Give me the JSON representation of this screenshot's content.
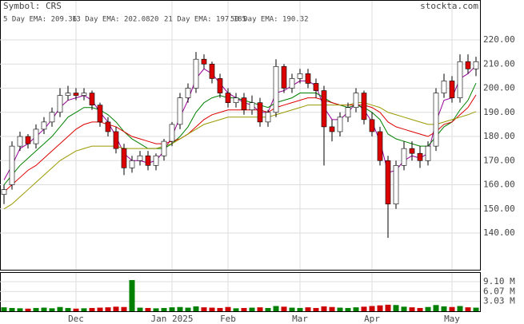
{
  "chart_data": {
    "type": "candlestick",
    "symbol_label": "Symbol: CRS",
    "site": "stockta.com",
    "categories": [
      null,
      null,
      null,
      null,
      null,
      null,
      null,
      null,
      null,
      "Dec",
      null,
      null,
      null,
      null,
      null,
      null,
      null,
      null,
      null,
      null,
      null,
      "Jan 2025",
      null,
      null,
      null,
      null,
      null,
      null,
      "Feb",
      null,
      null,
      null,
      null,
      null,
      null,
      null,
      null,
      "Mar",
      null,
      null,
      null,
      null,
      null,
      null,
      null,
      null,
      "Apr",
      null,
      null,
      null,
      null,
      null,
      null,
      null,
      null,
      null,
      "May",
      null,
      null,
      null
    ],
    "open": [
      156,
      160,
      176,
      180,
      177,
      183,
      186,
      190,
      197,
      198,
      197,
      198,
      193,
      186,
      182,
      175,
      167,
      170,
      172,
      168,
      172,
      178,
      185,
      196,
      200,
      212,
      210,
      204,
      198,
      194,
      196,
      191,
      194,
      186,
      190,
      209,
      200,
      204,
      206,
      202,
      199,
      184,
      182,
      188,
      192,
      198,
      187,
      182,
      170,
      152,
      168,
      175,
      173,
      170,
      176,
      198,
      203,
      196,
      211,
      208
    ],
    "high": [
      160,
      178,
      182,
      181,
      185,
      188,
      192,
      200,
      201,
      200,
      200,
      199,
      194,
      188,
      184,
      177,
      172,
      174,
      174,
      173,
      179,
      186,
      198,
      202,
      215,
      214,
      211,
      206,
      200,
      198,
      198,
      197,
      196,
      191,
      212,
      210,
      206,
      208,
      208,
      204,
      201,
      187,
      190,
      194,
      200,
      199,
      190,
      184,
      172,
      170,
      178,
      178,
      176,
      178,
      200,
      206,
      205,
      214,
      214,
      213
    ],
    "low": [
      152,
      158,
      174,
      175,
      175,
      181,
      184,
      188,
      195,
      195,
      195,
      191,
      184,
      180,
      173,
      164,
      165,
      168,
      166,
      166,
      170,
      176,
      183,
      194,
      198,
      208,
      202,
      196,
      192,
      192,
      189,
      189,
      184,
      184,
      188,
      198,
      198,
      202,
      200,
      196,
      168,
      178,
      180,
      186,
      190,
      185,
      180,
      168,
      138,
      150,
      166,
      170,
      167,
      168,
      174,
      196,
      194,
      194,
      206,
      205
    ],
    "close": [
      158,
      176,
      180,
      177,
      183,
      186,
      190,
      197,
      198,
      197,
      198,
      193,
      186,
      182,
      175,
      167,
      170,
      172,
      168,
      172,
      178,
      185,
      196,
      200,
      212,
      210,
      204,
      198,
      194,
      196,
      191,
      194,
      186,
      190,
      209,
      200,
      204,
      206,
      202,
      199,
      184,
      182,
      188,
      192,
      198,
      187,
      182,
      170,
      152,
      168,
      175,
      173,
      170,
      176,
      198,
      203,
      196,
      211,
      208,
      211
    ],
    "up_color": "#ffffff",
    "down_color": "#dd0000",
    "series": [
      {
        "name": "5 Day EMA: 209.36",
        "color": "#990099",
        "values": [
          162,
          168,
          175,
          177,
          180,
          183,
          187,
          192,
          195,
          196,
          197,
          195,
          190,
          186,
          180,
          173,
          170,
          170,
          169,
          170,
          174,
          180,
          188,
          195,
          204,
          208,
          206,
          202,
          198,
          196,
          194,
          193,
          190,
          190,
          198,
          199,
          201,
          203,
          203,
          201,
          192,
          187,
          187,
          190,
          194,
          191,
          186,
          178,
          165,
          166,
          170,
          172,
          171,
          173,
          186,
          195,
          196,
          204,
          206,
          209.36
        ]
      },
      {
        "name": "13 Day EMA: 202.0820",
        "color": "#008000",
        "values": [
          160,
          164,
          168,
          171,
          174,
          177,
          180,
          184,
          188,
          190,
          192,
          192,
          191,
          189,
          186,
          182,
          179,
          177,
          175,
          175,
          175,
          177,
          180,
          184,
          190,
          194,
          196,
          197,
          196,
          196,
          195,
          194,
          193,
          192,
          194,
          195,
          196,
          198,
          198,
          198,
          196,
          194,
          193,
          192,
          193,
          192,
          190,
          187,
          181,
          179,
          178,
          177,
          176,
          176,
          180,
          184,
          186,
          191,
          195,
          202.082
        ]
      },
      {
        "name": "21 Day EMA: 197.185",
        "color": "#dd0000",
        "values": [
          157,
          160,
          163,
          166,
          168,
          171,
          174,
          177,
          180,
          183,
          185,
          186,
          186,
          185,
          184,
          182,
          180,
          179,
          178,
          177,
          177,
          178,
          179,
          181,
          184,
          187,
          189,
          190,
          191,
          191,
          191,
          191,
          191,
          190,
          192,
          193,
          194,
          195,
          196,
          196,
          195,
          194,
          193,
          193,
          193,
          193,
          192,
          190,
          186,
          184,
          183,
          182,
          181,
          180,
          182,
          185,
          186,
          189,
          192,
          197.185
        ]
      },
      {
        "name": "50 Day EMA: 190.32",
        "color": "#999900",
        "values": [
          150,
          152,
          155,
          158,
          161,
          164,
          167,
          170,
          172,
          174,
          175,
          176,
          176,
          176,
          176,
          175,
          175,
          175,
          175,
          175,
          176,
          177,
          179,
          181,
          183,
          185,
          186,
          187,
          188,
          188,
          188,
          188,
          188,
          188,
          189,
          190,
          191,
          192,
          193,
          193,
          193,
          193,
          193,
          193,
          194,
          194,
          193,
          192,
          190,
          189,
          188,
          187,
          186,
          185,
          185,
          186,
          187,
          188,
          189,
          190.32
        ]
      }
    ],
    "ylim": [
      124.8,
      236.2
    ],
    "yticks": [
      {
        "value": 140,
        "label": "140.00"
      },
      {
        "value": 150,
        "label": "150.00"
      },
      {
        "value": 160,
        "label": "160.00"
      },
      {
        "value": 170,
        "label": "170.00"
      },
      {
        "value": 180,
        "label": "180.00"
      },
      {
        "value": 190,
        "label": "190.00"
      },
      {
        "value": 200,
        "label": "200.00"
      },
      {
        "value": 210,
        "label": "210.00"
      },
      {
        "value": 220,
        "label": "220.00"
      }
    ],
    "grid": true,
    "volume": {
      "up_color": "#008000",
      "down_color": "#cc0000",
      "values": [
        1.2,
        1.0,
        0.9,
        0.8,
        1.0,
        1.1,
        0.9,
        1.3,
        1.0,
        0.8,
        0.9,
        1.0,
        1.1,
        1.2,
        1.4,
        1.3,
        9.6,
        1.1,
        1.0,
        0.9,
        1.0,
        1.2,
        1.3,
        1.1,
        1.5,
        1.2,
        1.1,
        1.0,
        1.3,
        0.9,
        1.0,
        1.1,
        1.2,
        1.0,
        1.6,
        1.4,
        1.1,
        1.0,
        1.2,
        1.0,
        1.5,
        1.3,
        1.1,
        1.0,
        1.2,
        1.4,
        1.6,
        1.8,
        2.0,
        1.9,
        1.4,
        1.2,
        1.0,
        1.3,
        1.9,
        1.5,
        1.3,
        1.6,
        1.2,
        1.1
      ],
      "ylim": [
        0,
        11.8
      ],
      "yticks": [
        {
          "value": 3.03,
          "label": "3.03 M"
        },
        {
          "value": 6.07,
          "label": "6.07 M"
        },
        {
          "value": 9.1,
          "label": "9.10 M"
        }
      ]
    }
  }
}
